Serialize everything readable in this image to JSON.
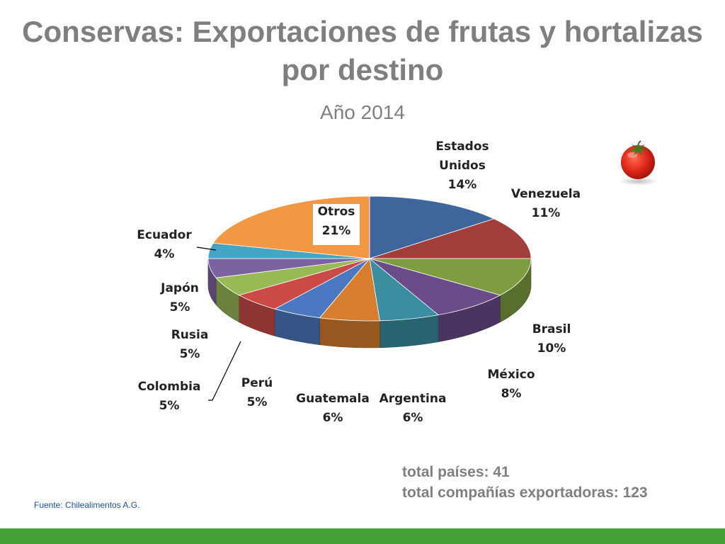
{
  "title": "Conservas: Exportaciones de frutas y hortalizas por destino",
  "subtitle": "Año 2014",
  "chart_data": {
    "type": "pie",
    "style": "3d",
    "categories": [
      "Estados Unidos",
      "Venezuela",
      "Brasil",
      "México",
      "Argentina",
      "Guatemala",
      "Perú",
      "Colombia",
      "Rusia",
      "Japón",
      "Ecuador",
      "Otros"
    ],
    "label_lines": [
      [
        "Estados",
        "Unidos",
        "14%"
      ],
      [
        "Venezuela",
        "11%"
      ],
      [
        "Brasil",
        "10%"
      ],
      [
        "México",
        "8%"
      ],
      [
        "Argentina",
        "6%"
      ],
      [
        "Guatemala",
        "6%"
      ],
      [
        "Perú",
        "5%"
      ],
      [
        "Colombia",
        "5%"
      ],
      [
        "Rusia",
        "5%"
      ],
      [
        "Japón",
        "5%"
      ],
      [
        "Ecuador",
        "4%"
      ],
      [
        "Otros",
        "21%"
      ]
    ],
    "values": [
      14,
      11,
      10,
      8,
      6,
      6,
      5,
      5,
      5,
      5,
      4,
      21
    ],
    "colors": [
      "#3e659c",
      "#a13e3b",
      "#7e9d40",
      "#694c89",
      "#3a8ea0",
      "#d77e2e",
      "#4b79c1",
      "#cb4a47",
      "#97ba57",
      "#7d62a1",
      "#44a6c4",
      "#f29743"
    ]
  },
  "totals": {
    "countries": "total países: 41",
    "companies": "total compañías exportadoras: 123"
  },
  "source": "Fuente: Chilealimentos A.G.",
  "decoration": {
    "icon": "tomato-icon"
  }
}
